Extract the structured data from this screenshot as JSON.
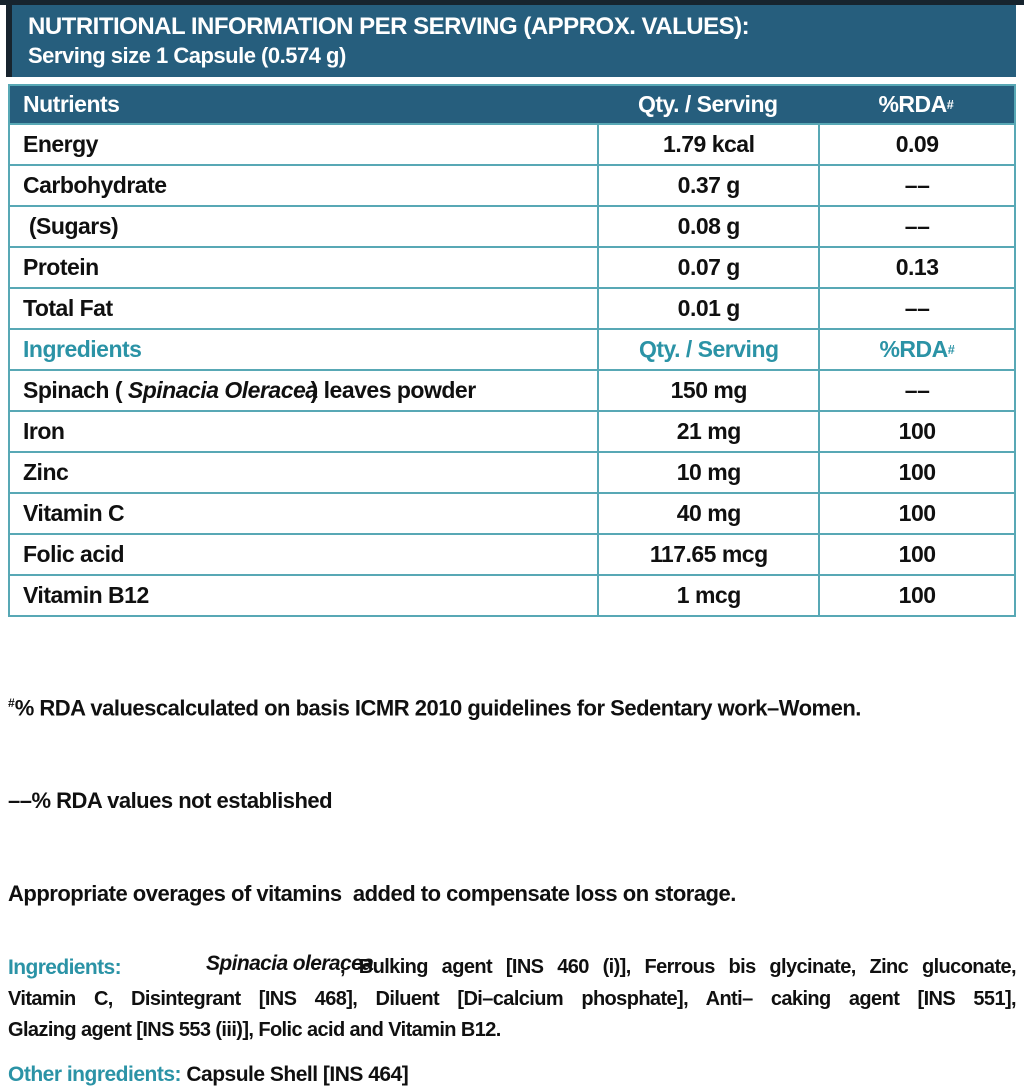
{
  "colors": {
    "header_bg": "#265E7D",
    "table_border": "#58A8B5",
    "accent_teal": "#2B93A6",
    "text": "#101010",
    "edge_dark": "#17242e"
  },
  "header": {
    "line1": "NUTRITIONAL INFORMATION PER SERVING (APPROX. VALUES):",
    "line2": "Serving size 1 Capsule (0.574 g)"
  },
  "table": {
    "columns": [
      "Nutrients",
      "Qty. / Serving",
      "%RDA"
    ],
    "rda_sup": "#",
    "nutrient_rows": [
      {
        "name": "Energy",
        "qty": "1.79 kcal",
        "rda": "0.09"
      },
      {
        "name": "Carbohydrate",
        "qty": "0.37 g",
        "rda": "––"
      },
      {
        "name": " (Sugars)",
        "qty": "0.08 g",
        "rda": "––"
      },
      {
        "name": "Protein",
        "qty": "0.07 g",
        "rda": "0.13"
      },
      {
        "name": "Total Fat",
        "qty": "0.01 g",
        "rda": "––"
      }
    ],
    "ingredients_header": [
      "Ingredients",
      "Qty. / Serving",
      "%RDA"
    ],
    "spinach_row": {
      "name_prefix": "Spinach ( ",
      "name_italic": "Spinacia Oleracea",
      "name_suffix": ") leaves powder",
      "qty": "150 mg",
      "rda": "––"
    },
    "ingredient_rows": [
      {
        "name": "Iron",
        "qty": "21 mg",
        "rda": "100"
      },
      {
        "name": "Zinc",
        "qty": "10 mg",
        "rda": "100"
      },
      {
        "name": "Vitamin C",
        "qty": "40 mg",
        "rda": "100"
      },
      {
        "name": "Folic acid",
        "qty": "117.65 mcg",
        "rda": "100"
      },
      {
        "name": "Vitamin B12",
        "qty": "1 mcg",
        "rda": "100"
      }
    ]
  },
  "footnotes": {
    "sup1": "#",
    "line1": "% RDA valuescalculated on basis ICMR 2010 guidelines for Sedentary work–Women.",
    "line2": "––% RDA values not established",
    "line3": "Appropriate overages of vitamins  added to compensate loss on storage."
  },
  "ingredients_para": {
    "label": "Ingredients:",
    "species_italic": "Spinacia oleracea",
    "line1_rest": ", Bulking agent [INS 460 (i)], Ferrous bis glycinate, Zinc gluconate,",
    "line2": "Vitamin C, Disintegrant [INS 468], Diluent [Di–calcium phosphate], Anti– caking agent [INS 551],",
    "line3": "Glazing agent [INS 553 (iii)], Folic acid and Vitamin B12."
  },
  "other_ingredients": {
    "label": "Other ingredients:",
    "value": "Capsule Shell [INS 464]"
  }
}
